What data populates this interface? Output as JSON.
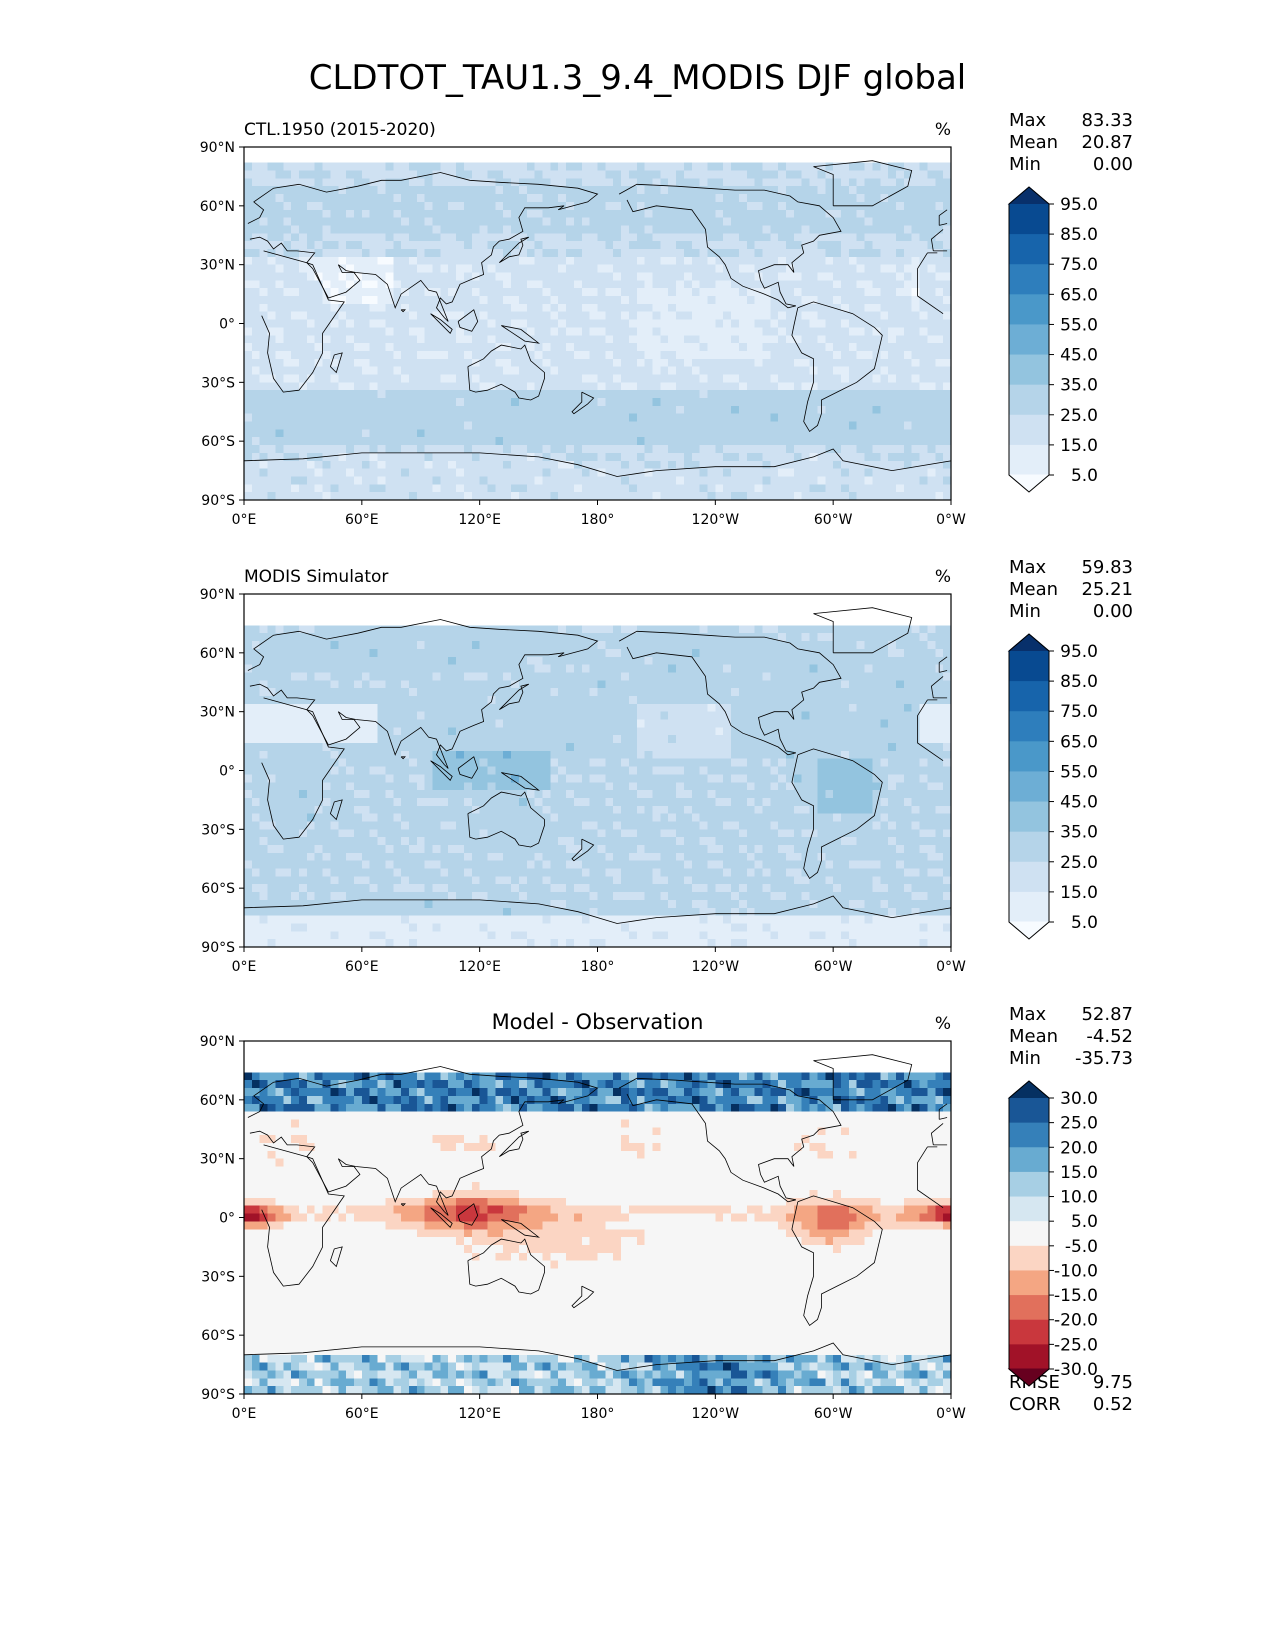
{
  "figure_title": "CLDTOT_TAU1.3_9.4_MODIS DJF global",
  "colors": {
    "blues": [
      "#f7fbff",
      "#e3eef9",
      "#cfe1f2",
      "#b5d4e9",
      "#93c4df",
      "#6daed5",
      "#4a98c9",
      "#2e7ebc",
      "#1764ab",
      "#084a91",
      "#08306b"
    ],
    "rdbu": [
      "#67001f",
      "#a11228",
      "#c9373d",
      "#e1705c",
      "#f4a683",
      "#fbd5c3",
      "#f6f6f6",
      "#d6e7f1",
      "#a7cfe4",
      "#68abd1",
      "#3580b9",
      "#195696",
      "#053061"
    ],
    "coast": "#000000"
  },
  "chart_data": [
    {
      "type": "heatmap",
      "title_left": "CTL.1950 (2015-2020)",
      "units": "%",
      "stats": {
        "max_label": "Max",
        "max": "83.33",
        "mean_label": "Mean",
        "mean": "20.87",
        "min_label": "Min",
        "min": "0.00"
      },
      "colorbar_levels": [
        "95.0",
        "85.0",
        "75.0",
        "65.0",
        "55.0",
        "45.0",
        "35.0",
        "25.0",
        "15.0",
        "5.0"
      ],
      "colormap": "blues",
      "ylabels": [
        "90°N",
        "60°N",
        "30°N",
        "0°",
        "30°S",
        "60°S",
        "90°S"
      ],
      "xlabels": [
        "0°E",
        "60°E",
        "120°E",
        "180°",
        "120°W",
        "60°W",
        "0°W"
      ],
      "lat_range": [
        -90,
        90
      ],
      "lon_range": [
        0,
        360
      ]
    },
    {
      "type": "heatmap",
      "title_left": "MODIS Simulator",
      "units": "%",
      "stats": {
        "max_label": "Max",
        "max": "59.83",
        "mean_label": "Mean",
        "mean": "25.21",
        "min_label": "Min",
        "min": "0.00"
      },
      "colorbar_levels": [
        "95.0",
        "85.0",
        "75.0",
        "65.0",
        "55.0",
        "45.0",
        "35.0",
        "25.0",
        "15.0",
        "5.0"
      ],
      "colormap": "blues",
      "ylabels": [
        "90°N",
        "60°N",
        "30°N",
        "0°",
        "30°S",
        "60°S",
        "90°S"
      ],
      "xlabels": [
        "0°E",
        "60°E",
        "120°E",
        "180°",
        "120°W",
        "60°W",
        "0°W"
      ],
      "lat_range": [
        -90,
        90
      ],
      "lon_range": [
        0,
        360
      ]
    },
    {
      "type": "heatmap",
      "title_center": "Model - Observation",
      "units": "%",
      "stats": {
        "max_label": "Max",
        "max": "52.87",
        "mean_label": "Mean",
        "mean": "-4.52",
        "min_label": "Min",
        "min": "-35.73"
      },
      "colorbar_levels": [
        "30.0",
        "25.0",
        "20.0",
        "15.0",
        "10.0",
        "5.0",
        "-5.0",
        "-10.0",
        "-15.0",
        "-20.0",
        "-25.0",
        "-30.0"
      ],
      "colormap": "rdbu",
      "metrics": {
        "rmse_label": "RMSE",
        "rmse": "9.75",
        "corr_label": "CORR",
        "corr": "0.52"
      },
      "ylabels": [
        "90°N",
        "60°N",
        "30°N",
        "0°",
        "30°S",
        "60°S",
        "90°S"
      ],
      "xlabels": [
        "0°E",
        "60°E",
        "120°E",
        "180°",
        "120°W",
        "60°W",
        "0°W"
      ],
      "lat_range": [
        -90,
        90
      ],
      "lon_range": [
        0,
        360
      ]
    }
  ]
}
